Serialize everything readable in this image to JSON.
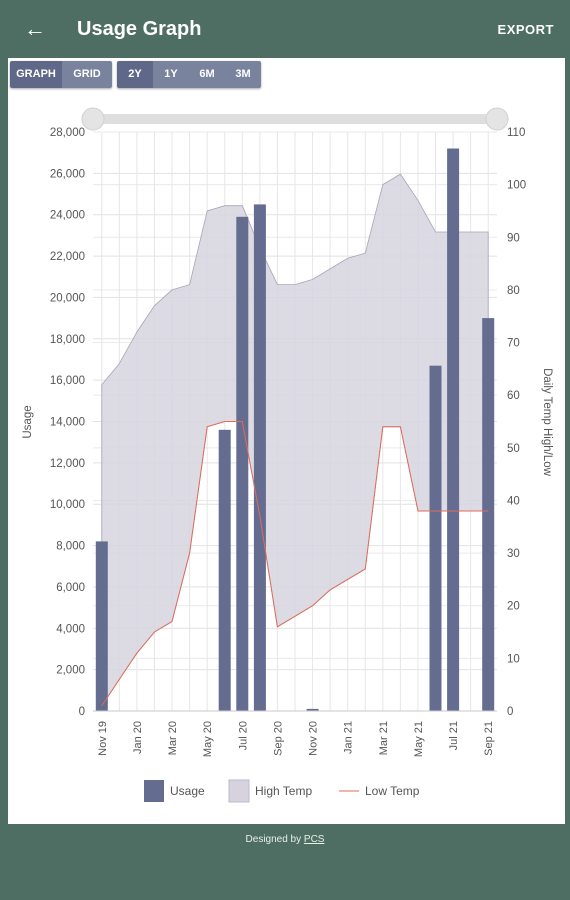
{
  "appbar": {
    "title": "Usage Graph",
    "back_icon": "arrow-left-icon",
    "export_label": "EXPORT"
  },
  "view_toggle": [
    {
      "label": "GRAPH",
      "active": true
    },
    {
      "label": "GRID",
      "active": false
    }
  ],
  "range_toggle": [
    {
      "label": "2Y",
      "active": true
    },
    {
      "label": "1Y",
      "active": false
    },
    {
      "label": "6M",
      "active": false
    },
    {
      "label": "3M",
      "active": false
    }
  ],
  "colors": {
    "usage": "#646d8f",
    "high_temp_fill": "#d6d3de",
    "low_temp_line": "#e06b5a",
    "header": "#4e6e63"
  },
  "footer": {
    "prefix": "Designed by ",
    "link": "PCS"
  },
  "chart_data": {
    "type": "bar",
    "x": [
      "Nov 19",
      "Dec 19",
      "Jan 20",
      "Feb 20",
      "Mar 20",
      "Apr 20",
      "May 20",
      "Jun 20",
      "Jul 20",
      "Aug 20",
      "Sep 20",
      "Oct 20",
      "Nov 20",
      "Dec 20",
      "Jan 21",
      "Feb 21",
      "Mar 21",
      "Apr 21",
      "May 21",
      "Jun 21",
      "Jul 21",
      "Aug 21",
      "Sep 21"
    ],
    "xtick_labels": [
      "Nov 19",
      "Jan 20",
      "Mar 20",
      "May 20",
      "Jul 20",
      "Sep 20",
      "Nov 20",
      "Jan 21",
      "Mar 21",
      "May 21",
      "Jul 21",
      "Sep 21"
    ],
    "ylabel": "Usage",
    "y2label": "Daily Temp High/Low",
    "ylim": [
      0,
      28000
    ],
    "yticks": [
      "0",
      "2,000",
      "4,000",
      "6,000",
      "8,000",
      "10,000",
      "12,000",
      "14,000",
      "16,000",
      "18,000",
      "20,000",
      "22,000",
      "24,000",
      "26,000",
      "28,000"
    ],
    "y2lim": [
      0,
      110
    ],
    "y2ticks": [
      "0",
      "10",
      "20",
      "30",
      "40",
      "50",
      "60",
      "70",
      "80",
      "90",
      "100",
      "110"
    ],
    "grid": true,
    "legend": [
      {
        "label": "Usage"
      },
      {
        "label": "High Temp"
      },
      {
        "label": "Low Temp"
      }
    ],
    "series": [
      {
        "name": "Usage",
        "axis": "left",
        "values": [
          8200,
          0,
          0,
          0,
          0,
          0,
          0,
          13600,
          23900,
          24500,
          0,
          0,
          100,
          0,
          0,
          0,
          0,
          0,
          0,
          16700,
          27200,
          0,
          19000
        ]
      },
      {
        "name": "High Temp",
        "axis": "right",
        "values": [
          62,
          66,
          72,
          77,
          80,
          81,
          95,
          96,
          96,
          88,
          81,
          81,
          82,
          84,
          86,
          87,
          100,
          102,
          97,
          91,
          91,
          91,
          91
        ]
      },
      {
        "name": "Low Temp",
        "axis": "right",
        "values": [
          1,
          6,
          11,
          15,
          17,
          30,
          54,
          55,
          55,
          37,
          16,
          18,
          20,
          23,
          25,
          27,
          54,
          54,
          38,
          38,
          38,
          38,
          38
        ]
      }
    ]
  }
}
